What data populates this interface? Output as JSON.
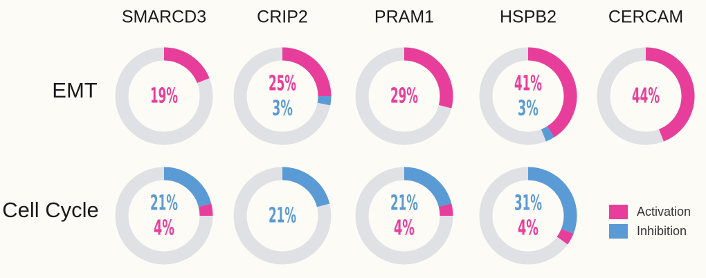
{
  "chart_data": {
    "type": "pie",
    "genes": [
      "SMARCD3",
      "CRIP2",
      "PRAM1",
      "HSPB2",
      "CERCAM"
    ],
    "pathways": [
      "EMT",
      "Cell Cycle"
    ],
    "series": [
      {
        "name": "Activation",
        "color": "#e83e9b"
      },
      {
        "name": "Inhibition",
        "color": "#5b9bd5"
      }
    ],
    "track_color": "#dfe1e5",
    "cells": [
      {
        "pathway": "EMT",
        "gene": "SMARCD3",
        "activation": 19,
        "inhibition": 0,
        "labels": [
          {
            "text": "19%",
            "series": "Activation"
          }
        ]
      },
      {
        "pathway": "EMT",
        "gene": "CRIP2",
        "activation": 25,
        "inhibition": 3,
        "labels": [
          {
            "text": "25%",
            "series": "Activation"
          },
          {
            "text": "3%",
            "series": "Inhibition"
          }
        ]
      },
      {
        "pathway": "EMT",
        "gene": "PRAM1",
        "activation": 29,
        "inhibition": 0,
        "labels": [
          {
            "text": "29%",
            "series": "Activation"
          }
        ]
      },
      {
        "pathway": "EMT",
        "gene": "HSPB2",
        "activation": 41,
        "inhibition": 3,
        "labels": [
          {
            "text": "41%",
            "series": "Activation"
          },
          {
            "text": "3%",
            "series": "Inhibition"
          }
        ]
      },
      {
        "pathway": "EMT",
        "gene": "CERCAM",
        "activation": 44,
        "inhibition": 0,
        "labels": [
          {
            "text": "44%",
            "series": "Activation"
          }
        ]
      },
      {
        "pathway": "Cell Cycle",
        "gene": "SMARCD3",
        "activation": 4,
        "inhibition": 21,
        "labels": [
          {
            "text": "21%",
            "series": "Inhibition"
          },
          {
            "text": "4%",
            "series": "Activation"
          }
        ]
      },
      {
        "pathway": "Cell Cycle",
        "gene": "CRIP2",
        "activation": 0,
        "inhibition": 21,
        "labels": [
          {
            "text": "21%",
            "series": "Inhibition"
          }
        ]
      },
      {
        "pathway": "Cell Cycle",
        "gene": "PRAM1",
        "activation": 4,
        "inhibition": 21,
        "labels": [
          {
            "text": "21%",
            "series": "Inhibition"
          },
          {
            "text": "4%",
            "series": "Activation"
          }
        ]
      },
      {
        "pathway": "Cell Cycle",
        "gene": "HSPB2",
        "activation": 4,
        "inhibition": 31,
        "labels": [
          {
            "text": "31%",
            "series": "Inhibition"
          },
          {
            "text": "4%",
            "series": "Activation"
          }
        ]
      }
    ],
    "legend": {
      "placement": "right",
      "entries": [
        "Activation",
        "Inhibition"
      ]
    }
  }
}
